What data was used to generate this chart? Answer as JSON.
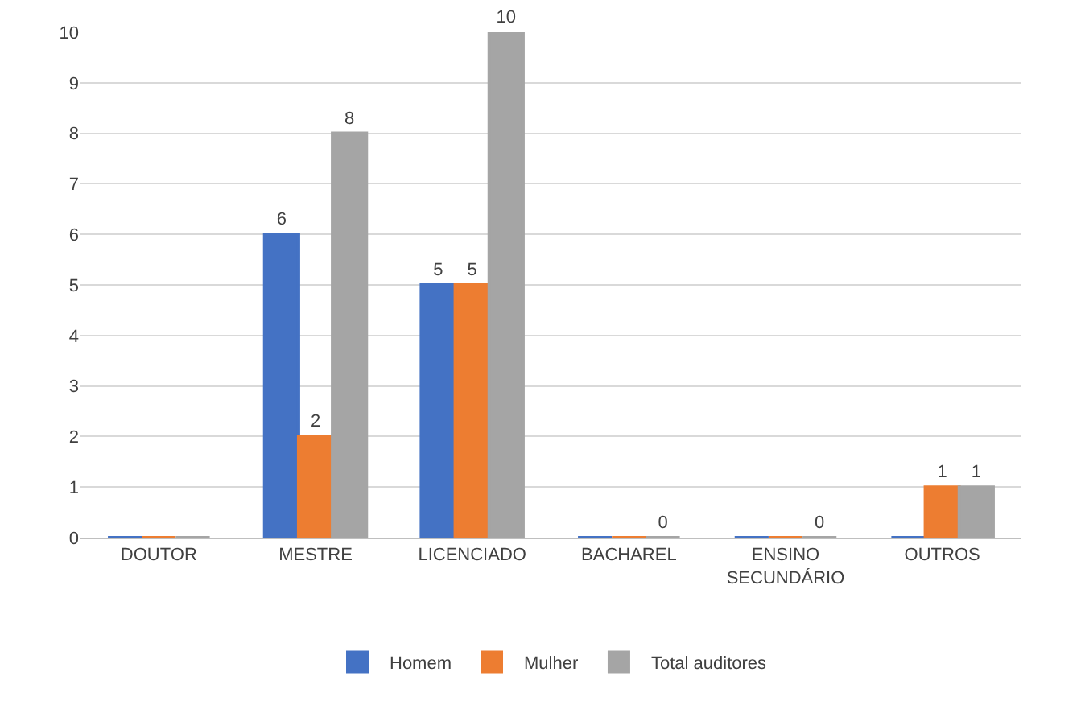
{
  "chart_data": {
    "type": "bar",
    "categories": [
      "DOUTOR",
      "MESTRE",
      "LICENCIADO",
      "BACHAREL",
      "ENSINO SECUNDÁRIO",
      "OUTROS"
    ],
    "series": [
      {
        "name": "Homem",
        "color": "#4472c4",
        "values": [
          0,
          6,
          5,
          0,
          0,
          0
        ],
        "value_labels": [
          null,
          "6",
          "5",
          null,
          null,
          null
        ]
      },
      {
        "name": "Mulher",
        "color": "#ed7d31",
        "values": [
          0,
          2,
          5,
          0,
          0,
          1
        ],
        "value_labels": [
          null,
          "2",
          "5",
          null,
          null,
          "1"
        ]
      },
      {
        "name": "Total auditores",
        "color": "#a5a5a5",
        "values": [
          0,
          8,
          10,
          0,
          0,
          1
        ],
        "value_labels": [
          null,
          "8",
          "10",
          "0",
          "0",
          "1"
        ]
      }
    ],
    "ylim": [
      0,
      10
    ],
    "yticks": [
      0,
      1,
      2,
      3,
      4,
      5,
      6,
      7,
      8,
      9,
      10
    ],
    "grid": "y",
    "legend": "bottom"
  }
}
